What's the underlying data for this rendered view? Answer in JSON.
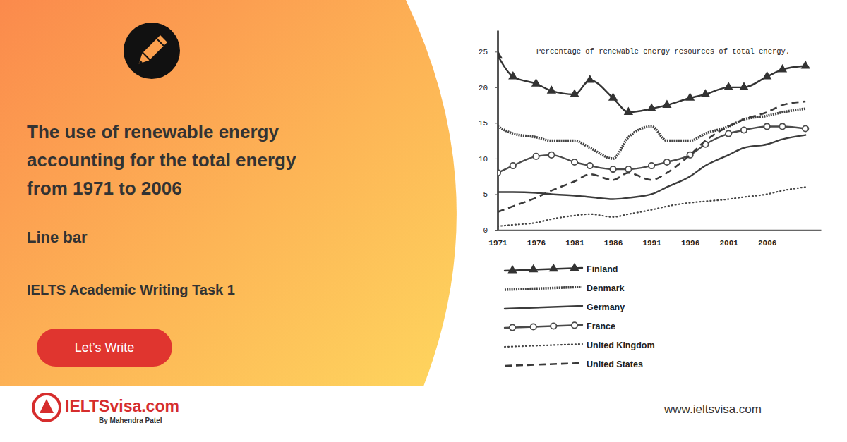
{
  "banner": {
    "title_lines": [
      "The use of renewable energy",
      "accounting for the total energy",
      "from 1971 to 2006"
    ],
    "chart_kind": "Line bar",
    "category": "IELTS Academic Writing Task 1",
    "button": "Let’s Write",
    "logo": "IELTSvisa.com",
    "logo_byline": "By Mahendra Patel",
    "website": "www.ieltsvisa.com"
  },
  "chart_data": {
    "type": "line",
    "title": "Percentage of renewable energy resources of total energy.",
    "x": [
      1971,
      1973,
      1976,
      1978,
      1981,
      1983,
      1986,
      1988,
      1991,
      1993,
      1996,
      1998,
      2001,
      2003,
      2006,
      2008,
      2011
    ],
    "xlim": [
      1971,
      2013
    ],
    "xticks": [
      1971,
      1976,
      1981,
      1986,
      1991,
      1996,
      2001,
      2006
    ],
    "ylim": [
      0,
      28
    ],
    "yticks": [
      0,
      5,
      10,
      15,
      20,
      25
    ],
    "grid": false,
    "legend": "bottom",
    "series": [
      {
        "name": "Finland",
        "color": "#333333",
        "marker": "triangle",
        "line_style": "solid",
        "values": [
          24.5,
          21.5,
          20.5,
          19.5,
          19,
          21,
          18.5,
          16.5,
          17,
          17.5,
          18.5,
          19,
          20,
          20,
          21.5,
          22.5,
          23
        ]
      },
      {
        "name": "Denmark",
        "color": "#444444",
        "marker": "none",
        "line_style": "wavy",
        "values": [
          14.5,
          13.5,
          13,
          12.5,
          12.5,
          11.5,
          10,
          13,
          14.5,
          12.5,
          12.5,
          13.5,
          14.5,
          15.5,
          16,
          16.5,
          17
        ]
      },
      {
        "name": "Germany",
        "color": "#3c3c3c",
        "marker": "none",
        "line_style": "solid",
        "values": [
          5.3,
          5.3,
          5.2,
          5,
          4.8,
          4.6,
          4.3,
          4.5,
          5,
          6,
          7.5,
          9,
          10.5,
          11.5,
          12,
          12.7,
          13.3
        ]
      },
      {
        "name": "France",
        "color": "#4a4a4a",
        "marker": "circle",
        "line_style": "solid",
        "values": [
          8,
          9,
          10.3,
          10.5,
          9.5,
          9,
          8.5,
          8.5,
          9,
          9.5,
          10.5,
          12,
          13.5,
          14,
          14.5,
          14.5,
          14.2
        ]
      },
      {
        "name": "United Kingdom",
        "color": "#444444",
        "marker": "none",
        "line_style": "dotted",
        "values": [
          0.5,
          0.7,
          1,
          1.5,
          2,
          2.2,
          1.8,
          2.2,
          2.8,
          3.3,
          3.8,
          4,
          4.3,
          4.6,
          5,
          5.5,
          6
        ]
      },
      {
        "name": "United States",
        "color": "#3a3a3a",
        "marker": "none",
        "line_style": "dashed",
        "values": [
          2.5,
          3.3,
          4.5,
          5.5,
          6.8,
          7.8,
          7,
          8,
          7,
          8,
          10.5,
          12.5,
          14.5,
          15.5,
          16.5,
          17.5,
          18
        ]
      }
    ]
  }
}
